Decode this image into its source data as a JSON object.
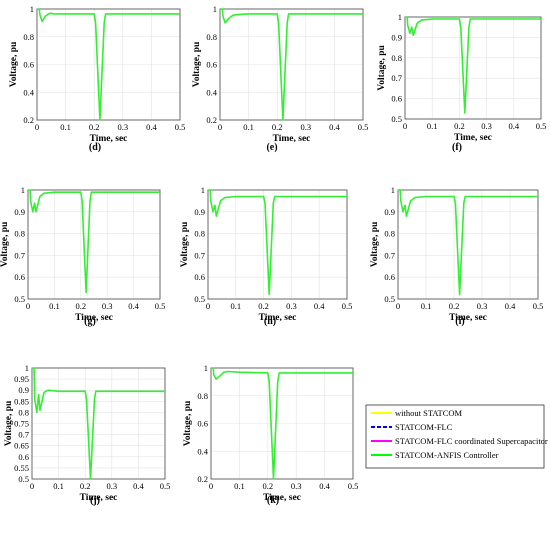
{
  "chart_data": [
    {
      "panel": "(d)",
      "type": "line",
      "xlabel": "Time, sec",
      "ylabel": "Voltage, pu",
      "xlim": [
        0,
        0.5
      ],
      "ylim": [
        0.2,
        1.0
      ],
      "xticks": [
        "0",
        "0.1",
        "0.2",
        "0.3",
        "0.4",
        "0.5"
      ],
      "yticks": [
        "0.2",
        "0.4",
        "0.6",
        "0.8",
        "1"
      ],
      "x": [
        0,
        0.008,
        0.01,
        0.018,
        0.03,
        0.045,
        0.06,
        0.1,
        0.2,
        0.205,
        0.22,
        0.235,
        0.24,
        0.5
      ],
      "y": [
        1.0,
        1.0,
        0.96,
        0.91,
        0.95,
        0.97,
        0.965,
        0.965,
        0.965,
        0.9,
        0.2,
        0.9,
        0.965,
        0.965
      ]
    },
    {
      "panel": "(e)",
      "type": "line",
      "xlabel": "Time, sec",
      "ylabel": "Voltage, pu",
      "xlim": [
        0,
        0.5
      ],
      "ylim": [
        0.2,
        1.0
      ],
      "xticks": [
        "0",
        "0.1",
        "0.2",
        "0.3",
        "0.4",
        "0.5"
      ],
      "yticks": [
        "0.2",
        "0.4",
        "0.6",
        "0.8",
        "1"
      ],
      "x": [
        0,
        0.008,
        0.01,
        0.018,
        0.03,
        0.045,
        0.06,
        0.1,
        0.2,
        0.205,
        0.22,
        0.235,
        0.24,
        0.5
      ],
      "y": [
        1.0,
        1.0,
        0.95,
        0.9,
        0.93,
        0.955,
        0.96,
        0.965,
        0.965,
        0.9,
        0.19,
        0.9,
        0.965,
        0.965
      ]
    },
    {
      "panel": "(f)",
      "type": "line",
      "xlabel": "Time, sec",
      "ylabel": "Voltage, pu",
      "xlim": [
        0,
        0.5
      ],
      "ylim": [
        0.5,
        1.0
      ],
      "xticks": [
        "0",
        "0.1",
        "0.2",
        "0.3",
        "0.4",
        "0.5"
      ],
      "yticks": [
        "0.5",
        "0.6",
        "0.7",
        "0.8",
        "0.9",
        "1"
      ],
      "x": [
        0,
        0.008,
        0.01,
        0.018,
        0.025,
        0.03,
        0.045,
        0.06,
        0.1,
        0.2,
        0.205,
        0.22,
        0.235,
        0.24,
        0.5
      ],
      "y": [
        1.0,
        1.0,
        0.96,
        0.92,
        0.95,
        0.91,
        0.97,
        0.985,
        0.99,
        0.99,
        0.95,
        0.53,
        0.95,
        0.99,
        0.99
      ]
    },
    {
      "panel": "(g)",
      "type": "line",
      "xlabel": "Time, sec",
      "ylabel": "Voltage, pu",
      "xlim": [
        0,
        0.5
      ],
      "ylim": [
        0.5,
        1.0
      ],
      "xticks": [
        "0",
        "0.1",
        "0.2",
        "0.3",
        "0.4",
        "0.5"
      ],
      "yticks": [
        "0.5",
        "0.6",
        "0.7",
        "0.8",
        "0.9",
        "1"
      ],
      "x": [
        0,
        0.008,
        0.01,
        0.018,
        0.025,
        0.03,
        0.045,
        0.06,
        0.1,
        0.2,
        0.205,
        0.22,
        0.235,
        0.24,
        0.5
      ],
      "y": [
        1.0,
        1.0,
        0.95,
        0.9,
        0.94,
        0.9,
        0.97,
        0.985,
        0.99,
        0.99,
        0.95,
        0.53,
        0.95,
        0.99,
        0.99
      ]
    },
    {
      "panel": "(h)",
      "type": "line",
      "xlabel": "Time, sec",
      "ylabel": "Voltage, pu",
      "xlim": [
        0,
        0.5
      ],
      "ylim": [
        0.5,
        1.0
      ],
      "xticks": [
        "0",
        "0.1",
        "0.2",
        "0.3",
        "0.4",
        "0.5"
      ],
      "yticks": [
        "0.5",
        "0.6",
        "0.7",
        "0.8",
        "0.9",
        "1"
      ],
      "x": [
        0,
        0.008,
        0.01,
        0.018,
        0.025,
        0.03,
        0.045,
        0.06,
        0.1,
        0.2,
        0.205,
        0.22,
        0.235,
        0.24,
        0.5
      ],
      "y": [
        1.0,
        1.0,
        0.95,
        0.9,
        0.93,
        0.88,
        0.95,
        0.965,
        0.97,
        0.97,
        0.94,
        0.52,
        0.94,
        0.97,
        0.97
      ]
    },
    {
      "panel": "(i)",
      "type": "line",
      "xlabel": "Time, sec",
      "ylabel": "Voltage, pu",
      "xlim": [
        0,
        0.5
      ],
      "ylim": [
        0.5,
        1.0
      ],
      "xticks": [
        "0",
        "0.1",
        "0.2",
        "0.3",
        "0.4",
        "0.5"
      ],
      "yticks": [
        "0.5",
        "0.6",
        "0.7",
        "0.8",
        "0.9",
        "1"
      ],
      "x": [
        0,
        0.008,
        0.01,
        0.018,
        0.025,
        0.03,
        0.045,
        0.06,
        0.1,
        0.2,
        0.205,
        0.22,
        0.235,
        0.24,
        0.5
      ],
      "y": [
        1.0,
        1.0,
        0.95,
        0.9,
        0.93,
        0.88,
        0.95,
        0.965,
        0.97,
        0.97,
        0.94,
        0.52,
        0.94,
        0.97,
        0.97
      ]
    },
    {
      "panel": "(j)",
      "type": "line",
      "xlabel": "Time, sec",
      "ylabel": "Voltage, pu",
      "xlim": [
        0,
        0.5
      ],
      "ylim": [
        0.5,
        1.0
      ],
      "xticks": [
        "0",
        "0.1",
        "0.2",
        "0.3",
        "0.4",
        "0.5"
      ],
      "yticks": [
        "0.5",
        "0.55",
        "0.6",
        "0.65",
        "0.7",
        "0.75",
        "0.8",
        "0.85",
        "0.9",
        "0.95",
        "1"
      ],
      "x": [
        0,
        0.008,
        0.01,
        0.018,
        0.025,
        0.03,
        0.045,
        0.06,
        0.1,
        0.2,
        0.205,
        0.22,
        0.235,
        0.24,
        0.5
      ],
      "y": [
        1.0,
        1.0,
        0.86,
        0.8,
        0.88,
        0.81,
        0.89,
        0.9,
        0.895,
        0.895,
        0.86,
        0.48,
        0.86,
        0.895,
        0.895
      ]
    },
    {
      "panel": "(k)",
      "type": "line",
      "xlabel": "Time, sec",
      "ylabel": "Voltage, pu",
      "xlim": [
        0,
        0.5
      ],
      "ylim": [
        0.2,
        1.0
      ],
      "xticks": [
        "0",
        "0.1",
        "0.2",
        "0.3",
        "0.4",
        "0.5"
      ],
      "yticks": [
        "0.2",
        "0.4",
        "0.6",
        "0.8",
        "1"
      ],
      "x": [
        0,
        0.008,
        0.01,
        0.018,
        0.03,
        0.045,
        0.06,
        0.1,
        0.2,
        0.205,
        0.22,
        0.235,
        0.24,
        0.5
      ],
      "y": [
        1.0,
        1.0,
        0.95,
        0.92,
        0.94,
        0.97,
        0.975,
        0.97,
        0.965,
        0.9,
        0.15,
        0.9,
        0.965,
        0.965
      ]
    }
  ],
  "legend": {
    "entries": [
      {
        "name": "without STATCOM",
        "color": "#ffff00",
        "style": "solid"
      },
      {
        "name": "STATCOM-FLC",
        "color": "#0000ff",
        "style": "dashed"
      },
      {
        "name": "STATCOM-FLC coordinated Supercapacitor",
        "color": "#ff00ff",
        "style": "solid"
      },
      {
        "name": "STATCOM-ANFIS Controller",
        "color": "#00ff00",
        "style": "solid"
      }
    ]
  },
  "colors": {
    "line": "#33ee33",
    "grid": "#e3e3e3",
    "axis": "#555555"
  }
}
